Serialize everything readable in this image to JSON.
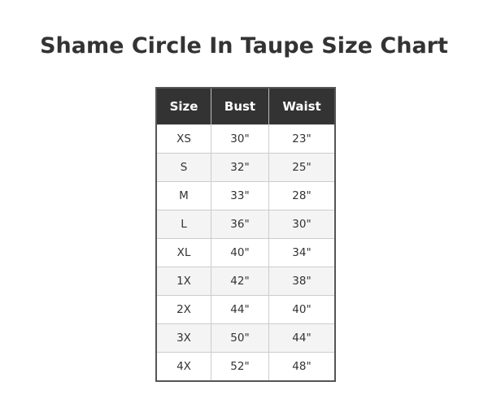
{
  "title": "Shame Circle In Taupe Size Chart",
  "table": {
    "headers": [
      "Size",
      "Bust",
      "Waist"
    ],
    "rows": [
      [
        "XS",
        "30\"",
        "23\""
      ],
      [
        "S",
        "32\"",
        "25\""
      ],
      [
        "M",
        "33\"",
        "28\""
      ],
      [
        "L",
        "36\"",
        "30\""
      ],
      [
        "XL",
        "40\"",
        "34\""
      ],
      [
        "1X",
        "42\"",
        "38\""
      ],
      [
        "2X",
        "44\"",
        "40\""
      ],
      [
        "3X",
        "50\"",
        "44\""
      ],
      [
        "4X",
        "52\"",
        "48\""
      ]
    ]
  },
  "colors": {
    "header_bg": "#333333",
    "header_text": "#ffffff",
    "stripe": "#f4f4f4",
    "text": "#333333"
  }
}
